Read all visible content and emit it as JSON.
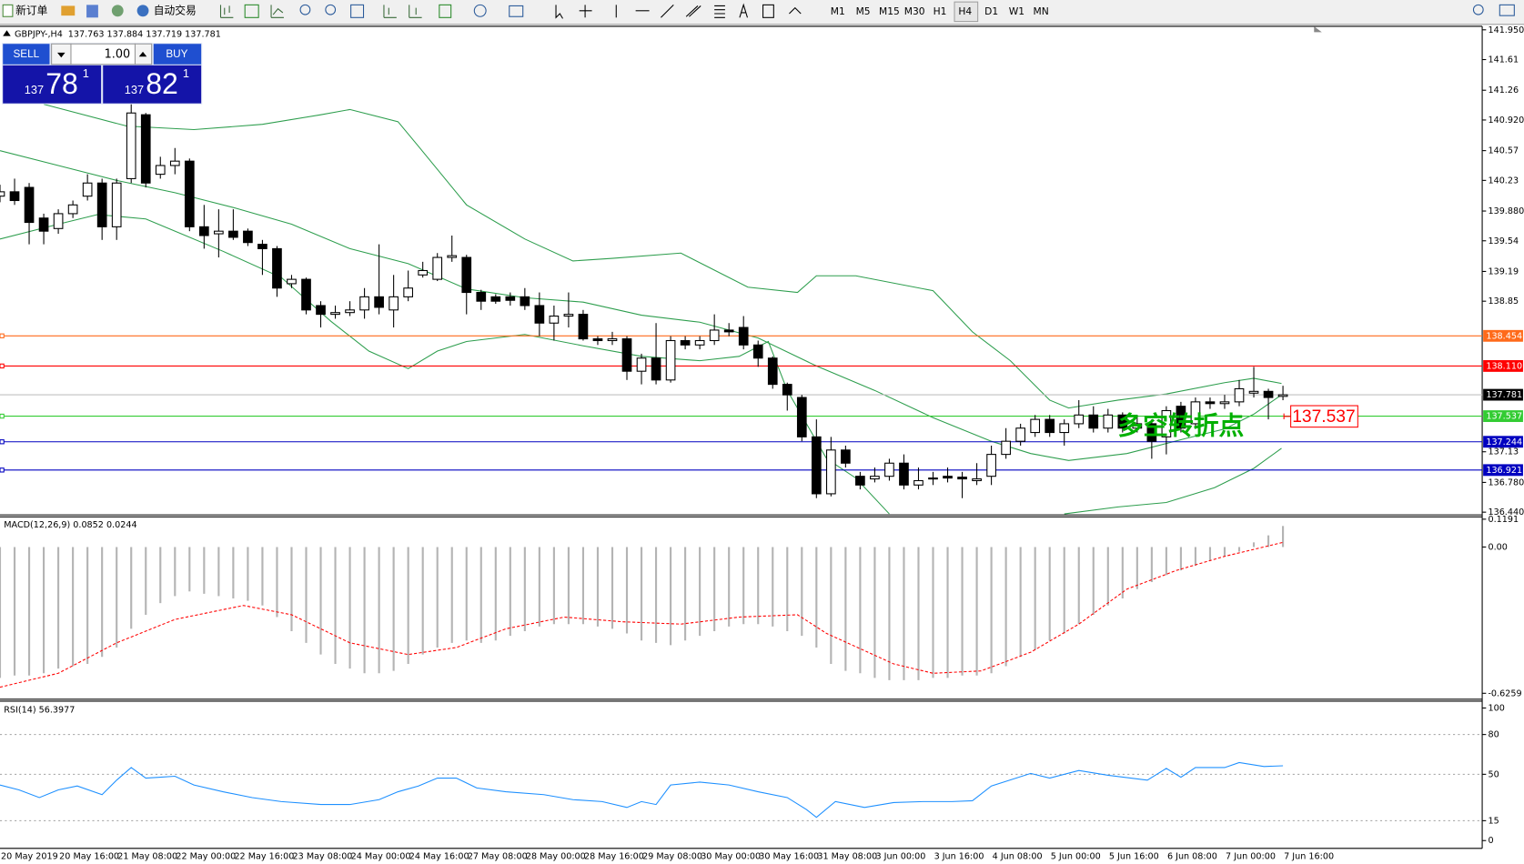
{
  "toolbar": {
    "new_order": "新订单",
    "auto_trading": "自动交易",
    "timeframes": [
      "M1",
      "M5",
      "M15",
      "M30",
      "H1",
      "H4",
      "D1",
      "W1",
      "MN"
    ]
  },
  "trade_panel": {
    "sell": "SELL",
    "buy": "BUY",
    "lots": "1.00",
    "bid_big": "137",
    "bid_main": "78",
    "bid_small": "1",
    "ask_big": "137",
    "ask_main": "82",
    "ask_small": "1"
  },
  "chart_data": [
    {
      "type": "candlestick",
      "title": "GBPJPY-,H4",
      "subtitle": "137.763 137.884 137.719 137.781",
      "categories": [
        "20 May 2019",
        null,
        null,
        null,
        "20 May 16:00",
        null,
        null,
        null,
        "21 May 08:00",
        null,
        null,
        null,
        "22 May 00:00",
        null,
        null,
        null,
        "22 May 16:00",
        null,
        null,
        null,
        "23 May 08:00",
        null,
        null,
        null,
        "24 May 00:00",
        null,
        null,
        null,
        "24 May 16:00",
        null,
        null,
        null,
        "27 May 08:00",
        null,
        null,
        null,
        "28 May 00:00",
        null,
        null,
        null,
        "28 May 16:00",
        null,
        null,
        null,
        "29 May 08:00",
        null,
        null,
        null,
        "30 May 00:00",
        null,
        null,
        null,
        "30 May 16:00",
        null,
        null,
        null,
        "31 May 08:00",
        null,
        null,
        null,
        "3 Jun 00:00",
        null,
        null,
        null,
        "3 Jun 16:00",
        null,
        null,
        null,
        "4 Jun 08:00",
        null,
        null,
        null,
        "5 Jun 00:00",
        null,
        null,
        null,
        "5 Jun 16:00",
        null,
        null,
        null,
        "6 Jun 08:00",
        null,
        null,
        null,
        "7 Jun 00:00",
        null,
        null,
        null,
        "7 Jun 16:00"
      ],
      "open": [
        140.05,
        140.1,
        140.15,
        139.8,
        139.68,
        139.85,
        140.05,
        140.2,
        139.7,
        140.25,
        140.98,
        140.3,
        140.4,
        140.45,
        139.7,
        139.62,
        139.65,
        139.65,
        139.5,
        139.45,
        139.05,
        139.1,
        138.8,
        138.7,
        138.72,
        138.75,
        138.9,
        138.75,
        138.9,
        139.15,
        139.1,
        139.35,
        139.35,
        138.95,
        138.9,
        138.9,
        138.9,
        138.8,
        138.6,
        138.68,
        138.7,
        138.42,
        138.4,
        138.42,
        138.05,
        138.2,
        137.95,
        138.4,
        138.35,
        138.4,
        138.52,
        138.55,
        138.35,
        138.2,
        137.9,
        137.75,
        137.3,
        136.65,
        137.15,
        136.85,
        136.82,
        136.85,
        137.0,
        136.75,
        136.82,
        136.85,
        136.84,
        136.8,
        136.85,
        137.1,
        137.25,
        137.35,
        137.5,
        137.35,
        137.45,
        137.55,
        137.4,
        137.55,
        137.4,
        137.45,
        137.3,
        137.65,
        137.45,
        137.7,
        137.68,
        137.7,
        137.8,
        137.82,
        137.763
      ],
      "high": [
        140.18,
        140.25,
        140.2,
        139.85,
        139.9,
        140.0,
        140.3,
        140.25,
        140.25,
        141.2,
        141.0,
        140.5,
        140.6,
        140.48,
        139.95,
        139.9,
        139.9,
        139.68,
        139.55,
        139.48,
        139.15,
        139.12,
        138.85,
        138.8,
        138.85,
        139.0,
        139.5,
        139.15,
        139.2,
        139.3,
        139.4,
        139.6,
        139.38,
        138.98,
        138.93,
        138.95,
        139.0,
        138.95,
        138.8,
        138.95,
        138.75,
        138.45,
        138.5,
        138.45,
        138.25,
        138.6,
        138.45,
        138.45,
        138.45,
        138.7,
        138.6,
        138.68,
        138.4,
        138.22,
        137.92,
        137.78,
        137.5,
        137.3,
        137.2,
        136.9,
        136.95,
        137.05,
        137.1,
        136.95,
        136.9,
        136.95,
        136.9,
        137.0,
        137.2,
        137.4,
        137.45,
        137.55,
        137.55,
        137.5,
        137.72,
        137.65,
        137.62,
        137.58,
        137.55,
        137.5,
        137.65,
        137.7,
        137.75,
        137.75,
        137.78,
        137.95,
        138.1,
        137.85,
        137.884
      ],
      "low": [
        139.98,
        139.95,
        139.5,
        139.5,
        139.62,
        139.8,
        140.0,
        139.55,
        139.55,
        140.2,
        140.15,
        140.25,
        140.3,
        139.65,
        139.45,
        139.35,
        139.55,
        139.48,
        139.15,
        138.9,
        139.0,
        138.7,
        138.55,
        138.65,
        138.68,
        138.65,
        138.7,
        138.55,
        138.85,
        139.12,
        139.08,
        139.3,
        138.7,
        138.75,
        138.82,
        138.8,
        138.75,
        138.45,
        138.4,
        138.55,
        138.4,
        138.35,
        138.35,
        137.95,
        137.9,
        137.9,
        137.92,
        138.3,
        138.3,
        138.35,
        138.45,
        138.3,
        138.1,
        137.85,
        137.6,
        137.25,
        136.6,
        136.62,
        136.95,
        136.7,
        136.78,
        136.8,
        136.7,
        136.7,
        136.75,
        136.78,
        136.6,
        136.75,
        136.75,
        137.05,
        137.2,
        137.3,
        137.3,
        137.2,
        137.4,
        137.35,
        137.35,
        137.35,
        137.35,
        137.05,
        137.1,
        137.35,
        137.4,
        137.62,
        137.62,
        137.65,
        137.75,
        137.5,
        137.719
      ],
      "close": [
        140.1,
        140.0,
        139.75,
        139.65,
        139.85,
        139.95,
        140.2,
        139.7,
        140.2,
        141.0,
        140.2,
        140.4,
        140.45,
        139.7,
        139.6,
        139.65,
        139.58,
        139.52,
        139.45,
        139.0,
        139.1,
        138.75,
        138.7,
        138.72,
        138.75,
        138.9,
        138.78,
        138.9,
        139.0,
        139.2,
        139.35,
        139.37,
        138.95,
        138.85,
        138.85,
        138.86,
        138.8,
        138.6,
        138.68,
        138.7,
        138.42,
        138.4,
        138.42,
        138.05,
        138.2,
        137.95,
        138.4,
        138.35,
        138.4,
        138.52,
        138.5,
        138.35,
        138.2,
        137.9,
        137.78,
        137.3,
        136.65,
        137.15,
        137.0,
        136.75,
        136.85,
        137.0,
        136.75,
        136.8,
        136.83,
        136.83,
        136.82,
        136.82,
        137.1,
        137.25,
        137.4,
        137.5,
        137.35,
        137.45,
        137.55,
        137.4,
        137.55,
        137.4,
        137.45,
        137.25,
        137.6,
        137.4,
        137.7,
        137.68,
        137.7,
        137.85,
        137.82,
        137.75,
        137.781
      ],
      "up_color": "#ffffff",
      "down_color": "#000000",
      "ylim": [
        136.42,
        141.99
      ],
      "yticks": [
        {
          "value": 141.95,
          "label": "141.950"
        },
        141.61,
        141.26,
        {
          "value": 140.92,
          "label": "140.920"
        },
        140.57,
        140.23,
        {
          "value": 139.88,
          "label": "139.880"
        },
        139.54,
        139.19,
        138.85,
        137.13,
        {
          "value": 136.78,
          "label": "136.780"
        },
        {
          "value": 136.44,
          "label": "136.440"
        }
      ],
      "series": [
        {
          "color": "#2e9e4e",
          "x": [
            3,
            8.7,
            13.3,
            18,
            22,
            24,
            27.3,
            28.7,
            32,
            36,
            39.3,
            42,
            46.7,
            51.3,
            54.7,
            56,
            58.7,
            64,
            66.7,
            69.3,
            72,
            73.3,
            76.7,
            80,
            84,
            86,
            87.9
          ],
          "values": [
            141.1,
            140.85,
            140.81,
            140.87,
            140.98,
            141.04,
            140.9,
            140.62,
            139.95,
            139.56,
            139.31,
            139.34,
            139.4,
            139.01,
            138.95,
            139.14,
            139.14,
            138.97,
            138.5,
            138.17,
            137.72,
            137.63,
            137.72,
            137.79,
            137.92,
            137.97,
            137.91
          ]
        },
        {
          "color": "#2e9e4e",
          "x": [
            0,
            4,
            8,
            12,
            16,
            20,
            24,
            28,
            32,
            36,
            40,
            44,
            48,
            52,
            56,
            60,
            64,
            68,
            70.7,
            73.3,
            77.3,
            81.3,
            84,
            86,
            87.9
          ],
          "values": [
            140.57,
            140.4,
            140.23,
            140.09,
            139.92,
            139.73,
            139.45,
            139.28,
            138.99,
            138.89,
            138.84,
            138.69,
            138.61,
            138.43,
            138.11,
            137.83,
            137.52,
            137.25,
            137.11,
            137.03,
            137.11,
            137.28,
            137.39,
            137.56,
            137.78
          ]
        },
        {
          "color": "#2e9e4e",
          "x": [
            0,
            4,
            6.7,
            10,
            15.3,
            19.3,
            22.7,
            25.3,
            28,
            30,
            32,
            36,
            40,
            44,
            48,
            50.7,
            52.7,
            54,
            56.7,
            58.7,
            61,
            62,
            73,
            76.7,
            80,
            83.3,
            86,
            87.9
          ],
          "values": [
            139.56,
            139.73,
            139.84,
            139.79,
            139.42,
            139.12,
            138.62,
            138.28,
            138.08,
            138.28,
            138.39,
            138.47,
            138.34,
            138.22,
            138.17,
            138.22,
            138.39,
            137.83,
            137.05,
            136.83,
            136.42,
            null,
            136.42,
            136.5,
            136.55,
            136.72,
            136.94,
            137.17
          ]
        }
      ],
      "hlines": [
        {
          "value": 138.454,
          "color": "#ff6a1a"
        },
        {
          "value": 138.11,
          "label": "138.110",
          "color": "#ff0000"
        },
        {
          "value": 137.537,
          "color": "#33cc33"
        },
        {
          "value": 137.244,
          "color": "#0000c0"
        },
        {
          "value": 136.921,
          "color": "#0000c0"
        }
      ],
      "current_price": {
        "value": 137.781,
        "color": "#c0c0c0"
      },
      "annotations": [
        {
          "text": "多空转折点",
          "color": "#00b000"
        },
        {
          "text": "137.537",
          "color": "#ff0000"
        }
      ]
    },
    {
      "type": "macd_histogram",
      "title": "MACD(12,26,9) 0.0852 0.0244",
      "values": [
        -0.56,
        -0.55,
        -0.55,
        -0.54,
        -0.52,
        -0.51,
        -0.5,
        -0.47,
        -0.43,
        -0.35,
        -0.29,
        -0.24,
        -0.21,
        -0.19,
        -0.2,
        -0.21,
        -0.22,
        -0.23,
        -0.25,
        -0.3,
        -0.36,
        -0.41,
        -0.46,
        -0.5,
        -0.52,
        -0.54,
        -0.54,
        -0.53,
        -0.5,
        -0.46,
        -0.43,
        -0.41,
        -0.4,
        -0.41,
        -0.4,
        -0.38,
        -0.36,
        -0.34,
        -0.33,
        -0.33,
        -0.33,
        -0.34,
        -0.35,
        -0.37,
        -0.4,
        -0.41,
        -0.42,
        -0.4,
        -0.38,
        -0.36,
        -0.34,
        -0.33,
        -0.33,
        -0.34,
        -0.36,
        -0.38,
        -0.43,
        -0.5,
        -0.53,
        -0.54,
        -0.56,
        -0.57,
        -0.57,
        -0.57,
        -0.56,
        -0.56,
        -0.55,
        -0.55,
        -0.54,
        -0.51,
        -0.47,
        -0.44,
        -0.4,
        -0.37,
        -0.33,
        -0.29,
        -0.25,
        -0.22,
        -0.18,
        -0.15,
        -0.12,
        -0.1,
        -0.08,
        -0.06,
        -0.04,
        -0.02,
        0.02,
        0.05,
        0.09
      ],
      "color": "#b4b4b4",
      "series": [
        {
          "color": "#ff0000",
          "style": "dashed",
          "x": [
            0,
            4,
            8,
            12,
            16.7,
            20,
            24,
            28,
            31.3,
            34.7,
            38.7,
            42.7,
            46.7,
            50.7,
            54.7,
            56.7,
            61.3,
            64,
            67.3,
            70.7,
            74,
            77.3,
            80.7,
            84,
            88
          ],
          "values": [
            -0.6,
            -0.54,
            -0.41,
            -0.31,
            -0.25,
            -0.29,
            -0.41,
            -0.46,
            -0.43,
            -0.35,
            -0.3,
            -0.32,
            -0.33,
            -0.3,
            -0.29,
            -0.37,
            -0.5,
            -0.54,
            -0.53,
            -0.45,
            -0.33,
            -0.18,
            -0.1,
            -0.04,
            0.02
          ]
        }
      ],
      "ylim": [
        -0.647,
        0.125
      ],
      "yticks": [
        0.1191,
        {
          "value": 0,
          "label": "0.00"
        },
        -0.6259
      ]
    },
    {
      "type": "line",
      "title": "RSI(14) 56.3977",
      "series": [
        {
          "color": "#1e90ff",
          "x": [
            0,
            1.3,
            2.7,
            4,
            5.3,
            7,
            8,
            9,
            10,
            11,
            12,
            13.3,
            15.3,
            17.3,
            19.3,
            22,
            24,
            26,
            27.3,
            28.7,
            30,
            31.3,
            32.7,
            34.7,
            37.3,
            39.3,
            41.3,
            43,
            44,
            45,
            46,
            48,
            50,
            52,
            54,
            55.3,
            56,
            57.3,
            59.3,
            61.3,
            63.3,
            65.3,
            66.7,
            68,
            70.7,
            72,
            74,
            76,
            78.7,
            80,
            81,
            82,
            84,
            85,
            86.7,
            88
          ],
          "values": [
            41.9,
            38.2,
            32.4,
            38.2,
            41.2,
            34.6,
            45.6,
            55.1,
            47.1,
            47.8,
            48.5,
            41.9,
            36.8,
            32.4,
            29.4,
            27.2,
            27.2,
            30.9,
            36.8,
            41.2,
            47.1,
            47.1,
            39.7,
            36.8,
            34.6,
            30.9,
            29.4,
            25.0,
            29.4,
            27.2,
            41.9,
            44.1,
            41.9,
            36.8,
            32.4,
            23.5,
            17.6,
            29.4,
            25.0,
            28.7,
            29.4,
            29.4,
            30.1,
            41.2,
            50.7,
            47.1,
            52.9,
            49.3,
            45.6,
            54.4,
            47.8,
            55.1,
            55.1,
            58.8,
            55.9,
            56.4
          ]
        }
      ],
      "ylim": [
        -5.9,
        103.7
      ],
      "yticks": [
        100,
        80,
        50,
        15,
        0
      ],
      "levels": [
        80,
        50,
        15
      ]
    }
  ]
}
